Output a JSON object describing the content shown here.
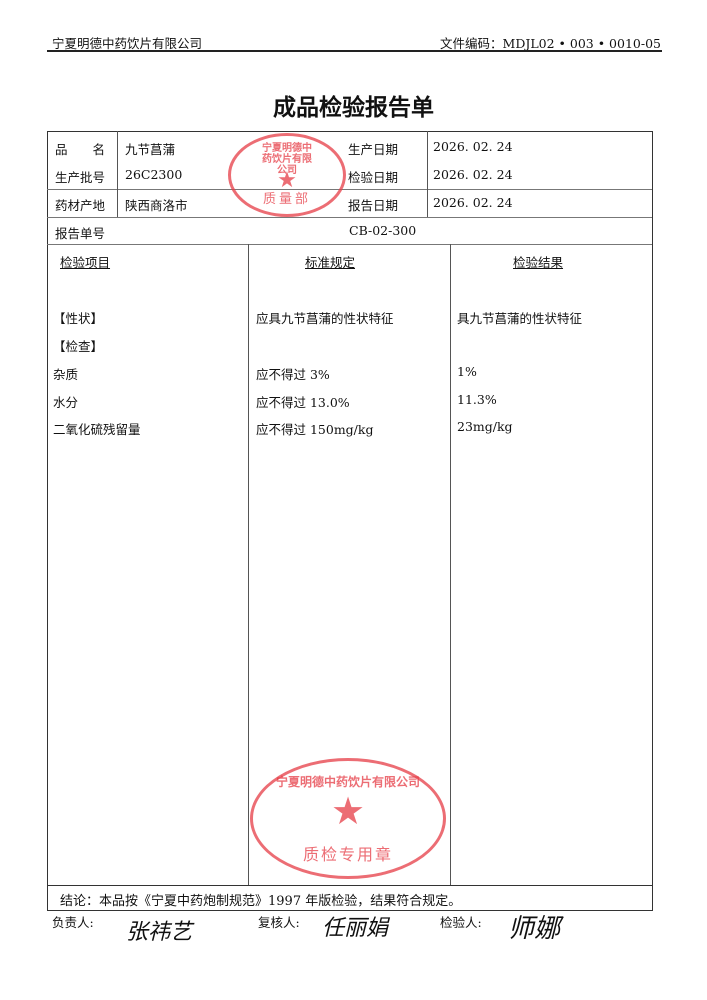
{
  "header": {
    "company": "宁夏明德中药饮片有限公司",
    "doc_code": "文件编码：MDJL02 • 003 • 0010-05"
  },
  "title": "成品检验报告单",
  "info": {
    "name_label": "品　　名",
    "name": "九节菖蒲",
    "batch_label": "生产批号",
    "batch": "26C2300",
    "origin_label": "药材产地",
    "origin": "陕西商洛市",
    "prod_date_label": "生产日期",
    "prod_date": "2026. 02. 24",
    "test_date_label": "检验日期",
    "test_date": "2026. 02. 24",
    "report_date_label": "报告日期",
    "report_date": "2026. 02. 24",
    "report_no_label": "报告单号",
    "report_no": "CB-02-300"
  },
  "columns": [
    "检验项目",
    "标准规定",
    "检验结果"
  ],
  "rows": [
    {
      "item": "【性状】",
      "standard": "应具九节菖蒲的性状特征",
      "result": "具九节菖蒲的性状特征"
    },
    {
      "item": "【检查】",
      "standard": "",
      "result": ""
    },
    {
      "item": "杂质",
      "standard": "应不得过 3%",
      "result": "1%"
    },
    {
      "item": "水分",
      "standard": "应不得过 13.0%",
      "result": "11.3%"
    },
    {
      "item": "二氧化硫残留量",
      "standard": "应不得过 150mg/kg",
      "result": "23mg/kg"
    }
  ],
  "conclusion": "结论：本品按《宁夏中药炮制规范》1997 年版检验，结果符合规定。",
  "signatures": {
    "responsible_label": "负责人:",
    "responsible": "张祎艺",
    "reviewer_label": "复核人:",
    "reviewer": "任丽娟",
    "inspector_label": "检验人:",
    "inspector": "师娜"
  },
  "stamps": {
    "top": {
      "ring": "宁夏明德中药饮片有限公司",
      "dept": "质量部"
    },
    "bottom": {
      "ring": "宁夏明德中药饮片有限公司",
      "dept": "质检专用章"
    }
  },
  "colors": {
    "stamp": "#e63c46"
  }
}
